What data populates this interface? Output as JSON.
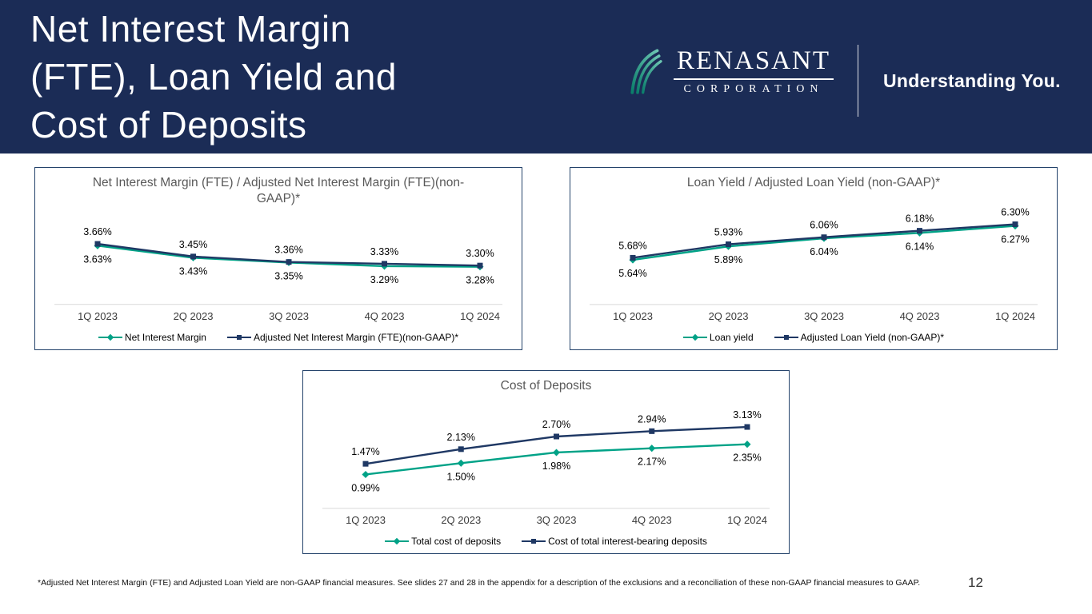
{
  "header": {
    "title_lines": [
      "Net Interest Margin",
      "(FTE), Loan Yield and",
      "Cost of Deposits"
    ],
    "logo": {
      "name": "RENASANT",
      "subtitle": "CORPORATION",
      "tagline": "Understanding You."
    }
  },
  "colors": {
    "header_bg": "#1b2c56",
    "teal": "#00a287",
    "navy": "#1f3864",
    "chart_border": "#24436b",
    "title_gray": "#595959",
    "axis_gray": "#d9d9d9",
    "label_black": "#000000"
  },
  "footer": {
    "footnote": "*Adjusted Net Interest Margin (FTE) and Adjusted Loan Yield are non-GAAP financial measures. See slides 27 and 28 in the appendix for a description of the exclusions and a reconciliation of these non-GAAP financial measures to GAAP.",
    "page_number": "12"
  },
  "chart_data": [
    {
      "type": "line",
      "title": "Net Interest Margin (FTE) / Adjusted Net Interest Margin (FTE)(non-GAAP)*",
      "categories": [
        "1Q 2023",
        "2Q 2023",
        "3Q 2023",
        "4Q 2023",
        "1Q 2024"
      ],
      "series": [
        {
          "name": "Net Interest Margin",
          "color_key": "teal",
          "marker": "diamond",
          "label_position": "below",
          "values": [
            3.63,
            3.43,
            3.35,
            3.29,
            3.28
          ],
          "labels": [
            "3.63%",
            "3.43%",
            "3.35%",
            "3.29%",
            "3.28%"
          ]
        },
        {
          "name": "Adjusted Net Interest Margin (FTE)(non-GAAP)*",
          "color_key": "navy",
          "marker": "square",
          "label_position": "above",
          "values": [
            3.66,
            3.45,
            3.36,
            3.33,
            3.3
          ],
          "labels": [
            "3.66%",
            "3.45%",
            "3.36%",
            "3.33%",
            "3.30%"
          ]
        }
      ],
      "ylim": [
        3.0,
        3.9
      ],
      "grid": false,
      "legend_position": "bottom"
    },
    {
      "type": "line",
      "title": "Loan Yield / Adjusted Loan Yield (non-GAAP)*",
      "categories": [
        "1Q 2023",
        "2Q 2023",
        "3Q 2023",
        "4Q 2023",
        "1Q 2024"
      ],
      "series": [
        {
          "name": "Loan yield",
          "color_key": "teal",
          "marker": "diamond",
          "label_position": "below",
          "values": [
            5.64,
            5.89,
            6.04,
            6.14,
            6.27
          ],
          "labels": [
            "5.64%",
            "5.89%",
            "6.04%",
            "6.14%",
            "6.27%"
          ]
        },
        {
          "name": "Adjusted Loan Yield (non-GAAP)*",
          "color_key": "navy",
          "marker": "square",
          "label_position": "above",
          "values": [
            5.68,
            5.93,
            6.06,
            6.18,
            6.3
          ],
          "labels": [
            "5.68%",
            "5.93%",
            "6.06%",
            "6.18%",
            "6.30%"
          ]
        }
      ],
      "ylim": [
        5.2,
        6.5
      ],
      "grid": false,
      "legend_position": "bottom"
    },
    {
      "type": "line",
      "title": "Cost of Deposits",
      "categories": [
        "1Q 2023",
        "2Q 2023",
        "3Q 2023",
        "4Q 2023",
        "1Q 2024"
      ],
      "series": [
        {
          "name": "Total cost of deposits",
          "color_key": "teal",
          "marker": "diamond",
          "label_position": "below",
          "values": [
            0.99,
            1.5,
            1.98,
            2.17,
            2.35
          ],
          "labels": [
            "0.99%",
            "1.50%",
            "1.98%",
            "2.17%",
            "2.35%"
          ]
        },
        {
          "name": "Cost of total interest-bearing deposits",
          "color_key": "navy",
          "marker": "square",
          "label_position": "above",
          "values": [
            1.47,
            2.13,
            2.7,
            2.94,
            3.13
          ],
          "labels": [
            "1.47%",
            "2.13%",
            "2.70%",
            "2.94%",
            "3.13%"
          ]
        }
      ],
      "ylim": [
        0.4,
        3.6
      ],
      "grid": false,
      "legend_position": "bottom"
    }
  ]
}
